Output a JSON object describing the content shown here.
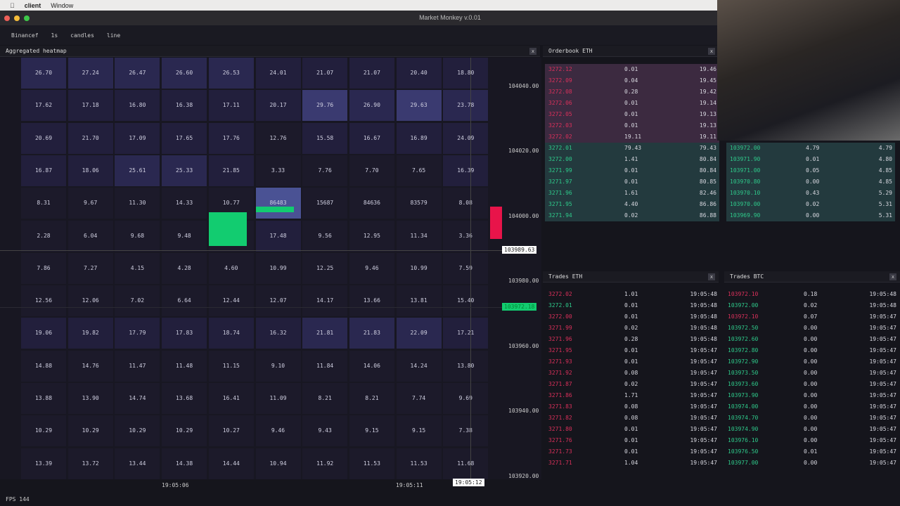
{
  "menubar": {
    "app": "client",
    "items": [
      "Window"
    ]
  },
  "window": {
    "title": "Market Monkey v.0.01"
  },
  "toolbar": {
    "items": [
      "Binancef",
      "1s",
      "candles",
      "line"
    ]
  },
  "heatmap": {
    "title": "Aggregated heatmap",
    "close": "x",
    "rows": [
      [
        "26.70",
        "27.24",
        "26.47",
        "26.60",
        "26.53",
        "24.01",
        "21.07",
        "21.07",
        "20.40",
        "18.80"
      ],
      [
        "17.62",
        "17.18",
        "16.80",
        "16.38",
        "17.11",
        "20.17",
        "29.76",
        "26.90",
        "29.63",
        "23.78"
      ],
      [
        "20.69",
        "21.70",
        "17.09",
        "17.65",
        "17.76",
        "12.76",
        "15.58",
        "16.67",
        "16.89",
        "24.09"
      ],
      [
        "16.87",
        "18.06",
        "25.61",
        "25.33",
        "21.85",
        "3.33",
        "7.76",
        "7.70",
        "7.65",
        "16.39"
      ],
      [
        "8.31",
        "9.67",
        "11.30",
        "14.33",
        "10.77",
        "86483",
        "15687",
        "84636",
        "83579",
        "8.08"
      ],
      [
        "2.28",
        "6.04",
        "9.68",
        "9.48",
        "",
        "17.48",
        "9.56",
        "12.95",
        "11.34",
        "3.36"
      ],
      [
        "7.86",
        "7.27",
        "4.15",
        "4.28",
        "4.60",
        "10.99",
        "12.25",
        "9.46",
        "10.99",
        "7.59"
      ],
      [
        "12.56",
        "12.06",
        "7.02",
        "6.64",
        "12.44",
        "12.07",
        "14.17",
        "13.66",
        "13.81",
        "15.40"
      ],
      [
        "19.06",
        "19.82",
        "17.79",
        "17.83",
        "18.74",
        "16.32",
        "21.81",
        "21.83",
        "22.09",
        "17.21"
      ],
      [
        "14.88",
        "14.76",
        "11.47",
        "11.48",
        "11.15",
        "9.10",
        "11.84",
        "14.06",
        "14.24",
        "13.80"
      ],
      [
        "13.88",
        "13.90",
        "14.74",
        "13.68",
        "16.41",
        "11.09",
        "8.21",
        "8.21",
        "7.74",
        "9.69"
      ],
      [
        "10.29",
        "10.29",
        "10.29",
        "10.29",
        "10.27",
        "9.46",
        "9.43",
        "9.15",
        "9.15",
        "7.38"
      ],
      [
        "13.39",
        "13.72",
        "13.44",
        "14.38",
        "14.44",
        "10.94",
        "11.92",
        "11.53",
        "11.53",
        "11.68"
      ]
    ],
    "levels": [
      [
        2,
        2,
        2,
        2,
        2,
        1,
        1,
        1,
        1,
        1
      ],
      [
        1,
        1,
        1,
        1,
        1,
        1,
        3,
        2,
        3,
        2
      ],
      [
        1,
        1,
        1,
        1,
        1,
        0,
        1,
        1,
        1,
        1
      ],
      [
        1,
        1,
        2,
        2,
        1,
        0,
        0,
        0,
        0,
        1
      ],
      [
        0,
        0,
        0,
        0,
        0,
        4,
        0,
        0,
        0,
        0
      ],
      [
        0,
        0,
        0,
        0,
        0,
        1,
        0,
        0,
        0,
        0
      ],
      [
        0,
        0,
        0,
        0,
        0,
        0,
        0,
        0,
        0,
        0
      ],
      [
        0,
        0,
        0,
        0,
        0,
        0,
        0,
        0,
        0,
        0
      ],
      [
        1,
        1,
        1,
        1,
        1,
        1,
        2,
        2,
        2,
        1
      ],
      [
        0,
        0,
        0,
        0,
        0,
        0,
        0,
        0,
        0,
        0
      ],
      [
        0,
        0,
        0,
        0,
        0,
        0,
        0,
        0,
        0,
        0
      ],
      [
        0,
        0,
        0,
        0,
        0,
        0,
        0,
        0,
        0,
        0
      ],
      [
        0,
        0,
        0,
        0,
        0,
        0,
        0,
        0,
        0,
        0
      ]
    ],
    "price_labels": [
      "104040.00",
      "104020.00",
      "104000.00",
      "103980.00",
      "103960.00",
      "103940.00",
      "103920.00"
    ],
    "cursor_price": "103989.63",
    "last_price": "103972.18",
    "time_labels": [
      "19:05:06",
      "19:05:11"
    ],
    "cursor_time": "19:05:12"
  },
  "orderbook_eth": {
    "title": "Orderbook ETH",
    "close": "x",
    "asks": [
      [
        "3272.12",
        "0.01",
        "19.46"
      ],
      [
        "3272.09",
        "0.04",
        "19.45"
      ],
      [
        "3272.08",
        "0.28",
        "19.42"
      ],
      [
        "3272.06",
        "0.01",
        "19.14"
      ],
      [
        "3272.05",
        "0.01",
        "19.13"
      ],
      [
        "3272.03",
        "0.01",
        "19.13"
      ],
      [
        "3272.02",
        "19.11",
        "19.11"
      ]
    ],
    "bids": [
      [
        "3272.01",
        "79.43",
        "79.43"
      ],
      [
        "3272.00",
        "1.41",
        "80.84"
      ],
      [
        "3271.99",
        "0.01",
        "80.84"
      ],
      [
        "3271.97",
        "0.01",
        "80.85"
      ],
      [
        "3271.96",
        "1.61",
        "82.46"
      ],
      [
        "3271.95",
        "4.40",
        "86.86"
      ],
      [
        "3271.94",
        "0.02",
        "86.88"
      ]
    ]
  },
  "orderbook_btc": {
    "bids": [
      [
        "103972.00",
        "4.79",
        "4.79"
      ],
      [
        "103971.90",
        "0.01",
        "4.80"
      ],
      [
        "103971.00",
        "0.05",
        "4.85"
      ],
      [
        "103970.80",
        "0.00",
        "4.85"
      ],
      [
        "103970.10",
        "0.43",
        "5.29"
      ],
      [
        "103970.00",
        "0.02",
        "5.31"
      ],
      [
        "103969.90",
        "0.00",
        "5.31"
      ]
    ]
  },
  "trades_eth": {
    "title": "Trades ETH",
    "close": "x",
    "rows": [
      [
        "3272.02",
        "1.01",
        "19:05:48",
        "sell"
      ],
      [
        "3272.01",
        "0.01",
        "19:05:48",
        "buy"
      ],
      [
        "3272.00",
        "0.01",
        "19:05:48",
        "sell"
      ],
      [
        "3271.99",
        "0.02",
        "19:05:48",
        "sell"
      ],
      [
        "3271.96",
        "0.28",
        "19:05:48",
        "sell"
      ],
      [
        "3271.95",
        "0.01",
        "19:05:47",
        "sell"
      ],
      [
        "3271.93",
        "0.01",
        "19:05:47",
        "sell"
      ],
      [
        "3271.92",
        "0.08",
        "19:05:47",
        "sell"
      ],
      [
        "3271.87",
        "0.02",
        "19:05:47",
        "sell"
      ],
      [
        "3271.86",
        "1.71",
        "19:05:47",
        "sell"
      ],
      [
        "3271.83",
        "0.08",
        "19:05:47",
        "sell"
      ],
      [
        "3271.82",
        "0.08",
        "19:05:47",
        "sell"
      ],
      [
        "3271.80",
        "0.01",
        "19:05:47",
        "sell"
      ],
      [
        "3271.76",
        "0.01",
        "19:05:47",
        "sell"
      ],
      [
        "3271.73",
        "0.01",
        "19:05:47",
        "sell"
      ],
      [
        "3271.71",
        "1.04",
        "19:05:47",
        "sell"
      ]
    ]
  },
  "trades_btc": {
    "title": "Trades BTC",
    "close": "x",
    "rows": [
      [
        "103972.10",
        "0.18",
        "19:05:48",
        "sell"
      ],
      [
        "103972.00",
        "0.02",
        "19:05:48",
        "buy"
      ],
      [
        "103972.10",
        "0.07",
        "19:05:47",
        "sell"
      ],
      [
        "103972.50",
        "0.00",
        "19:05:47",
        "buy"
      ],
      [
        "103972.60",
        "0.00",
        "19:05:47",
        "buy"
      ],
      [
        "103972.80",
        "0.00",
        "19:05:47",
        "buy"
      ],
      [
        "103972.90",
        "0.00",
        "19:05:47",
        "buy"
      ],
      [
        "103973.50",
        "0.00",
        "19:05:47",
        "buy"
      ],
      [
        "103973.60",
        "0.00",
        "19:05:47",
        "buy"
      ],
      [
        "103973.90",
        "0.00",
        "19:05:47",
        "buy"
      ],
      [
        "103974.00",
        "0.00",
        "19:05:47",
        "buy"
      ],
      [
        "103974.70",
        "0.00",
        "19:05:47",
        "buy"
      ],
      [
        "103974.90",
        "0.00",
        "19:05:47",
        "buy"
      ],
      [
        "103976.10",
        "0.00",
        "19:05:47",
        "buy"
      ],
      [
        "103976.50",
        "0.01",
        "19:05:47",
        "buy"
      ],
      [
        "103977.00",
        "0.00",
        "19:05:47",
        "buy"
      ]
    ]
  },
  "status": {
    "fps": "FPS 144"
  },
  "colors": {
    "buy": "#2ec98a",
    "sell": "#d8305a",
    "ask_bg": "#3c2a40",
    "bid_bg": "#233a3e",
    "candle_up": "#12cc70",
    "candle_down": "#e8144a"
  }
}
